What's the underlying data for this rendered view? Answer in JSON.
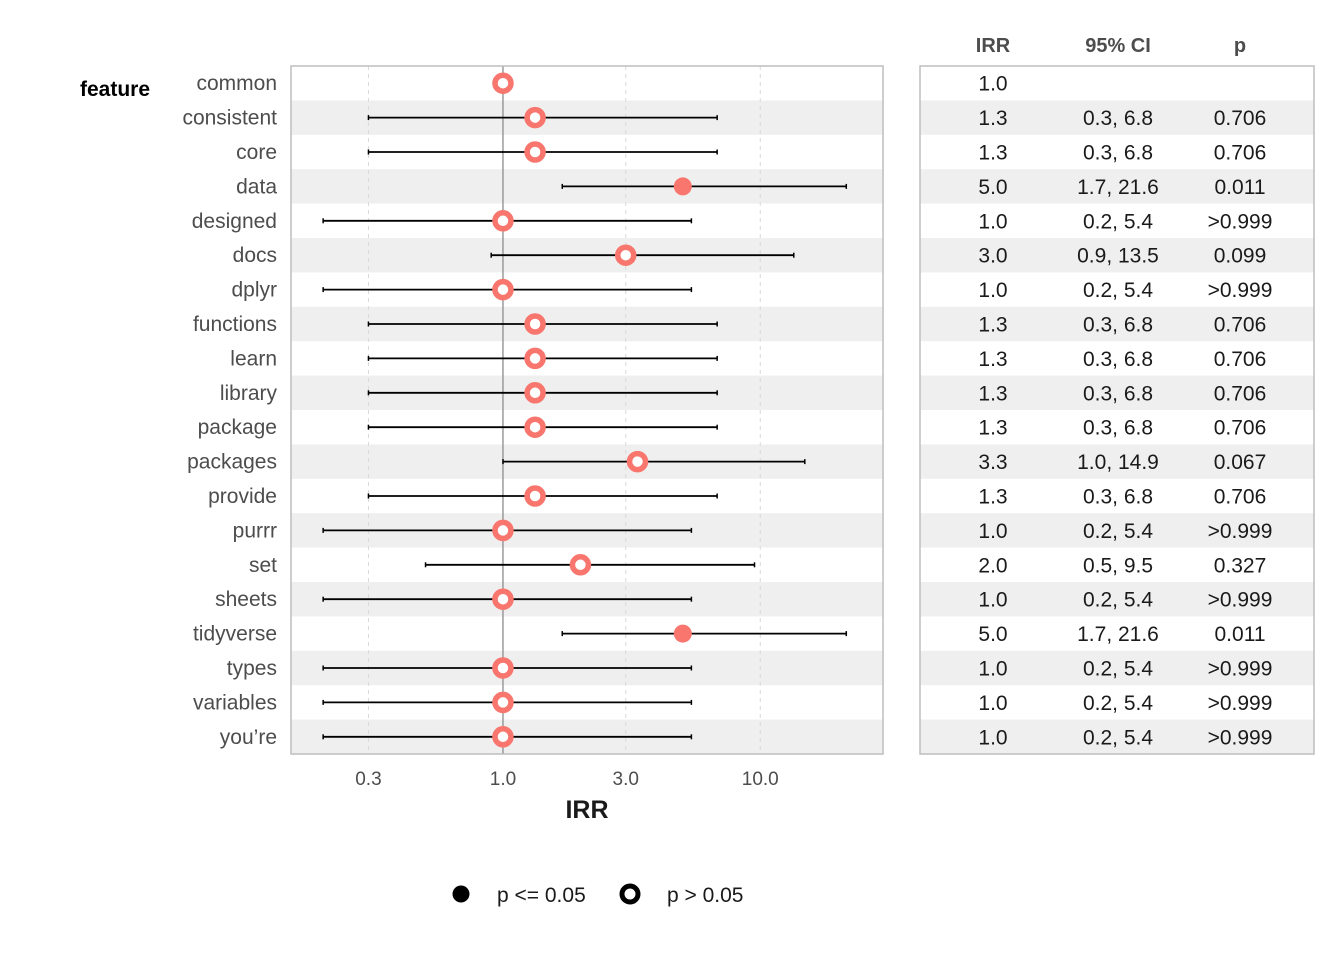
{
  "chart_data": {
    "type": "scatter",
    "subtype": "forest-plot",
    "ylabel_title": "feature",
    "xlabel": "IRR",
    "x_scale": "log",
    "xlim": [
      0.15,
      30
    ],
    "x_ticks": [
      0.3,
      1.0,
      3.0,
      10.0
    ],
    "x_tick_labels": [
      "0.3",
      "1.0",
      "3.0",
      "10.0"
    ],
    "reference_line": 1.0,
    "point_color": "#F8766D",
    "stripe_color": "#EFEFEF",
    "table_headers": {
      "irr": "IRR",
      "ci": "95% CI",
      "p": "p"
    },
    "legend": {
      "position": "bottom",
      "items": [
        {
          "label": "p <= 0.05",
          "shape": "filled"
        },
        {
          "label": "p > 0.05",
          "shape": "open"
        }
      ]
    },
    "rows": [
      {
        "feature": "common",
        "irr": 1.0,
        "lo": null,
        "hi": null,
        "irr_label": "1.0",
        "ci_label": "",
        "p_label": "",
        "significant": false
      },
      {
        "feature": "consistent",
        "irr": 1.333,
        "lo": 0.3,
        "hi": 6.8,
        "irr_label": "1.3",
        "ci_label": "0.3, 6.8",
        "p_label": "0.706",
        "significant": false
      },
      {
        "feature": "core",
        "irr": 1.333,
        "lo": 0.3,
        "hi": 6.8,
        "irr_label": "1.3",
        "ci_label": "0.3, 6.8",
        "p_label": "0.706",
        "significant": false
      },
      {
        "feature": "data",
        "irr": 5.0,
        "lo": 1.7,
        "hi": 21.6,
        "irr_label": "5.0",
        "ci_label": "1.7, 21.6",
        "p_label": "0.011",
        "significant": true
      },
      {
        "feature": "designed",
        "irr": 1.0,
        "lo": 0.2,
        "hi": 5.4,
        "irr_label": "1.0",
        "ci_label": "0.2, 5.4",
        "p_label": ">0.999",
        "significant": false
      },
      {
        "feature": "docs",
        "irr": 3.0,
        "lo": 0.9,
        "hi": 13.5,
        "irr_label": "3.0",
        "ci_label": "0.9, 13.5",
        "p_label": "0.099",
        "significant": false
      },
      {
        "feature": "dplyr",
        "irr": 1.0,
        "lo": 0.2,
        "hi": 5.4,
        "irr_label": "1.0",
        "ci_label": "0.2, 5.4",
        "p_label": ">0.999",
        "significant": false
      },
      {
        "feature": "functions",
        "irr": 1.333,
        "lo": 0.3,
        "hi": 6.8,
        "irr_label": "1.3",
        "ci_label": "0.3, 6.8",
        "p_label": "0.706",
        "significant": false
      },
      {
        "feature": "learn",
        "irr": 1.333,
        "lo": 0.3,
        "hi": 6.8,
        "irr_label": "1.3",
        "ci_label": "0.3, 6.8",
        "p_label": "0.706",
        "significant": false
      },
      {
        "feature": "library",
        "irr": 1.333,
        "lo": 0.3,
        "hi": 6.8,
        "irr_label": "1.3",
        "ci_label": "0.3, 6.8",
        "p_label": "0.706",
        "significant": false
      },
      {
        "feature": "package",
        "irr": 1.333,
        "lo": 0.3,
        "hi": 6.8,
        "irr_label": "1.3",
        "ci_label": "0.3, 6.8",
        "p_label": "0.706",
        "significant": false
      },
      {
        "feature": "packages",
        "irr": 3.333,
        "lo": 1.0,
        "hi": 14.9,
        "irr_label": "3.3",
        "ci_label": "1.0, 14.9",
        "p_label": "0.067",
        "significant": false
      },
      {
        "feature": "provide",
        "irr": 1.333,
        "lo": 0.3,
        "hi": 6.8,
        "irr_label": "1.3",
        "ci_label": "0.3, 6.8",
        "p_label": "0.706",
        "significant": false
      },
      {
        "feature": "purrr",
        "irr": 1.0,
        "lo": 0.2,
        "hi": 5.4,
        "irr_label": "1.0",
        "ci_label": "0.2, 5.4",
        "p_label": ">0.999",
        "significant": false
      },
      {
        "feature": "set",
        "irr": 2.0,
        "lo": 0.5,
        "hi": 9.5,
        "irr_label": "2.0",
        "ci_label": "0.5, 9.5",
        "p_label": "0.327",
        "significant": false
      },
      {
        "feature": "sheets",
        "irr": 1.0,
        "lo": 0.2,
        "hi": 5.4,
        "irr_label": "1.0",
        "ci_label": "0.2, 5.4",
        "p_label": ">0.999",
        "significant": false
      },
      {
        "feature": "tidyverse",
        "irr": 5.0,
        "lo": 1.7,
        "hi": 21.6,
        "irr_label": "5.0",
        "ci_label": "1.7, 21.6",
        "p_label": "0.011",
        "significant": true
      },
      {
        "feature": "types",
        "irr": 1.0,
        "lo": 0.2,
        "hi": 5.4,
        "irr_label": "1.0",
        "ci_label": "0.2, 5.4",
        "p_label": ">0.999",
        "significant": false
      },
      {
        "feature": "variables",
        "irr": 1.0,
        "lo": 0.2,
        "hi": 5.4,
        "irr_label": "1.0",
        "ci_label": "0.2, 5.4",
        "p_label": ">0.999",
        "significant": false
      },
      {
        "feature": "you’re",
        "irr": 1.0,
        "lo": 0.2,
        "hi": 5.4,
        "irr_label": "1.0",
        "ci_label": "0.2, 5.4",
        "p_label": ">0.999",
        "significant": false
      }
    ]
  }
}
